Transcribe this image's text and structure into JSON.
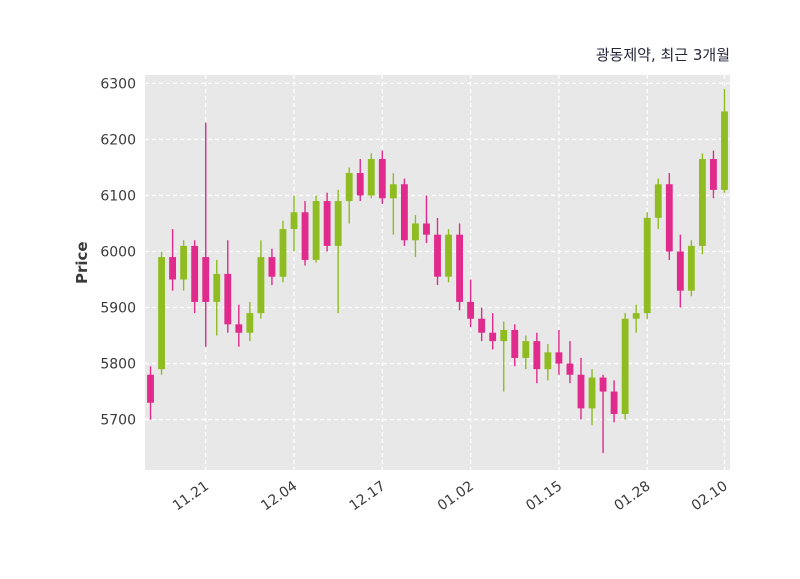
{
  "chart": {
    "title": "광동제약, 최근 3개월",
    "ylabel": "Price"
  },
  "chart_data": {
    "type": "candlestick",
    "title": "광동제약, 최근 3개월",
    "ylabel": "Price",
    "xlabel": "",
    "ylim": [
      5610,
      6315
    ],
    "yticks": [
      5700,
      5800,
      5900,
      6000,
      6100,
      6200,
      6300
    ],
    "x_tick_labels": [
      "11.21",
      "12.04",
      "12.17",
      "01.02",
      "01.15",
      "01.28",
      "02.10"
    ],
    "x_tick_indices": [
      5,
      13,
      21,
      29,
      37,
      45,
      52
    ],
    "grid": "on",
    "legend": "none",
    "colors": {
      "up": "#8fbc21",
      "down": "#e02a8c",
      "plot_bg": "#e8e8e8",
      "grid": "#ffffff",
      "tick_text": "#3a3a3a",
      "title_text": "#26263c"
    },
    "ohlc_format": [
      "open",
      "high",
      "low",
      "close"
    ],
    "candles": [
      [
        5780,
        5795,
        5700,
        5730
      ],
      [
        5790,
        6000,
        5780,
        5990
      ],
      [
        5990,
        6040,
        5930,
        5950
      ],
      [
        5950,
        6020,
        5930,
        6010
      ],
      [
        6010,
        6020,
        5890,
        5910
      ],
      [
        5990,
        6230,
        5830,
        5910
      ],
      [
        5910,
        5985,
        5850,
        5960
      ],
      [
        5960,
        6020,
        5855,
        5870
      ],
      [
        5870,
        5905,
        5830,
        5855
      ],
      [
        5855,
        5910,
        5840,
        5890
      ],
      [
        5890,
        6020,
        5880,
        5990
      ],
      [
        5990,
        6005,
        5940,
        5955
      ],
      [
        5955,
        6055,
        5945,
        6040
      ],
      [
        6040,
        6100,
        6000,
        6070
      ],
      [
        6070,
        6090,
        5975,
        5985
      ],
      [
        5985,
        6100,
        5980,
        6090
      ],
      [
        6090,
        6105,
        6000,
        6010
      ],
      [
        6010,
        6110,
        5890,
        6090
      ],
      [
        6090,
        6150,
        6050,
        6140
      ],
      [
        6140,
        6165,
        6090,
        6100
      ],
      [
        6100,
        6175,
        6095,
        6165
      ],
      [
        6165,
        6180,
        6085,
        6095
      ],
      [
        6095,
        6140,
        6030,
        6120
      ],
      [
        6120,
        6130,
        6010,
        6020
      ],
      [
        6020,
        6065,
        5990,
        6050
      ],
      [
        6050,
        6100,
        6015,
        6030
      ],
      [
        6030,
        6060,
        5940,
        5955
      ],
      [
        5955,
        6040,
        5945,
        6030
      ],
      [
        6030,
        6050,
        5895,
        5910
      ],
      [
        5910,
        5950,
        5865,
        5880
      ],
      [
        5880,
        5900,
        5840,
        5855
      ],
      [
        5855,
        5890,
        5825,
        5840
      ],
      [
        5840,
        5875,
        5750,
        5860
      ],
      [
        5860,
        5870,
        5795,
        5810
      ],
      [
        5810,
        5850,
        5790,
        5840
      ],
      [
        5840,
        5855,
        5765,
        5790
      ],
      [
        5790,
        5835,
        5770,
        5820
      ],
      [
        5820,
        5860,
        5780,
        5800
      ],
      [
        5800,
        5840,
        5765,
        5780
      ],
      [
        5780,
        5810,
        5700,
        5720
      ],
      [
        5720,
        5790,
        5690,
        5775
      ],
      [
        5775,
        5780,
        5640,
        5750
      ],
      [
        5750,
        5770,
        5695,
        5710
      ],
      [
        5710,
        5890,
        5700,
        5880
      ],
      [
        5880,
        5905,
        5855,
        5890
      ],
      [
        5890,
        6070,
        5880,
        6060
      ],
      [
        6060,
        6130,
        6040,
        6120
      ],
      [
        6120,
        6140,
        5985,
        6000
      ],
      [
        6000,
        6030,
        5900,
        5930
      ],
      [
        5930,
        6020,
        5920,
        6010
      ],
      [
        6010,
        6175,
        5995,
        6165
      ],
      [
        6165,
        6180,
        6095,
        6110
      ],
      [
        6110,
        6290,
        6105,
        6250
      ]
    ]
  }
}
